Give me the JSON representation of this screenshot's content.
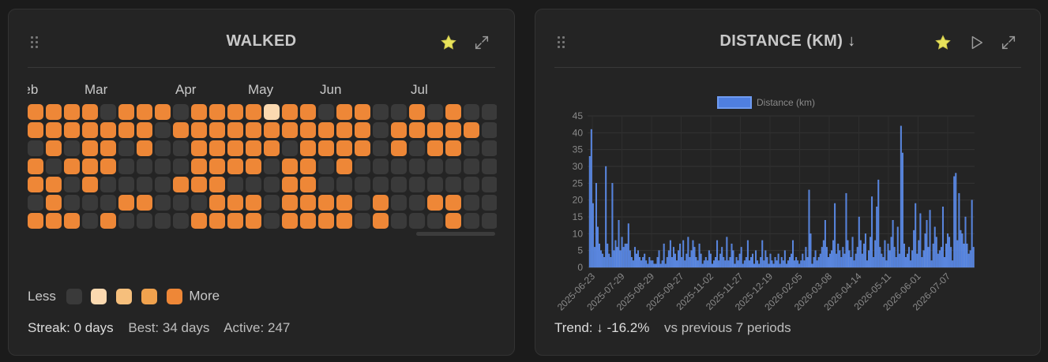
{
  "walked": {
    "title": "WALKED",
    "months": [
      "Feb",
      "Mar",
      "Apr",
      "May",
      "Jun",
      "Jul"
    ],
    "weeks": [
      [
        4,
        4,
        0,
        4,
        4,
        0,
        4
      ],
      [
        4,
        4,
        4,
        0,
        4,
        4,
        4
      ],
      [
        4,
        4,
        0,
        4,
        0,
        0,
        4
      ],
      [
        4,
        4,
        4,
        4,
        4,
        0,
        0
      ],
      [
        0,
        4,
        4,
        4,
        0,
        0,
        4
      ],
      [
        4,
        4,
        0,
        0,
        0,
        4,
        0
      ],
      [
        4,
        4,
        4,
        0,
        0,
        4,
        0
      ],
      [
        4,
        0,
        0,
        0,
        0,
        0,
        0
      ],
      [
        0,
        4,
        0,
        0,
        4,
        0,
        0
      ],
      [
        4,
        4,
        4,
        4,
        4,
        0,
        4
      ],
      [
        4,
        4,
        4,
        4,
        4,
        4,
        4
      ],
      [
        4,
        4,
        4,
        4,
        0,
        4,
        4
      ],
      [
        4,
        4,
        4,
        4,
        0,
        4,
        4
      ],
      [
        1,
        4,
        4,
        0,
        0,
        0,
        0
      ],
      [
        4,
        4,
        0,
        4,
        4,
        4,
        4
      ],
      [
        4,
        4,
        4,
        4,
        4,
        4,
        4
      ],
      [
        0,
        4,
        4,
        0,
        0,
        4,
        4
      ],
      [
        4,
        4,
        4,
        4,
        0,
        4,
        4
      ],
      [
        4,
        4,
        4,
        0,
        0,
        0,
        0
      ],
      [
        0,
        0,
        0,
        0,
        0,
        4,
        4
      ],
      [
        0,
        4,
        4,
        0,
        0,
        0,
        0
      ],
      [
        4,
        4,
        0,
        0,
        0,
        0,
        0
      ],
      [
        0,
        4,
        4,
        0,
        0,
        4,
        0
      ],
      [
        4,
        4,
        4,
        0,
        0,
        4,
        4
      ],
      [
        0,
        4,
        0,
        0,
        0,
        0,
        0
      ],
      [
        0,
        0,
        0,
        0,
        0,
        0,
        0
      ]
    ],
    "legend": {
      "less": "Less",
      "more": "More"
    },
    "levels": [
      "#3a3a3a",
      "#fbd9b0",
      "#f6bf7c",
      "#f0a24e",
      "#ee8737"
    ],
    "stats": {
      "streak": "Streak: 0 days",
      "best": "Best: 34 days",
      "active": "Active: 247"
    },
    "icons": {
      "drag": "drag-handle-icon",
      "favorite": "star-icon",
      "expand": "expand-icon"
    }
  },
  "distance": {
    "title": "DISTANCE (KM)  ↓",
    "trend": "Trend: ↓ -16.2%",
    "comparison": "vs previous 7 periods",
    "icons": {
      "drag": "drag-handle-icon",
      "favorite": "star-icon",
      "play": "play-icon",
      "expand": "expand-icon"
    }
  },
  "colors": {
    "star": "#e8e35a",
    "bar": "#4f7fe0",
    "bar_border": "#6f9bf0",
    "heat": "#ee8737"
  },
  "chart_data": {
    "type": "bar",
    "legend": [
      "Distance (km)"
    ],
    "ylim": [
      0,
      45
    ],
    "yticks": [
      0,
      5,
      10,
      15,
      20,
      25,
      30,
      35,
      40,
      45
    ],
    "xtick_labels": [
      "2025-06-23",
      "2025-07-29",
      "2025-08-29",
      "2025-09-27",
      "2025-11-02",
      "2025-11-27",
      "2025-12-19",
      "2026-02-05",
      "2026-03-08",
      "2026-04-14",
      "2026-05-11",
      "2026-06-01",
      "2026-07-07"
    ],
    "grid": true,
    "series": [
      {
        "name": "Distance (km)",
        "values": [
          33,
          41,
          19,
          6,
          25,
          12,
          7,
          5,
          4,
          3,
          30,
          7,
          4,
          3,
          25,
          5,
          8,
          6,
          14,
          5,
          9,
          6,
          7,
          7,
          13,
          5,
          3,
          2,
          6,
          4,
          5,
          3,
          2,
          3,
          4,
          2,
          1,
          3,
          2,
          2,
          1,
          1,
          3,
          5,
          1,
          2,
          7,
          1,
          3,
          5,
          8,
          3,
          6,
          4,
          2,
          5,
          7,
          3,
          8,
          2,
          4,
          9,
          3,
          5,
          8,
          6,
          3,
          2,
          7,
          4,
          1,
          2,
          3,
          2,
          5,
          4,
          1,
          2,
          3,
          8,
          2,
          4,
          6,
          3,
          2,
          9,
          2,
          3,
          7,
          5,
          1,
          3,
          2,
          4,
          6,
          1,
          2,
          3,
          8,
          2,
          3,
          4,
          1,
          5,
          2,
          1,
          3,
          8,
          2,
          5,
          3,
          1,
          4,
          2,
          1,
          3,
          2,
          4,
          1,
          3,
          2,
          5,
          1,
          2,
          3,
          4,
          8,
          2,
          3,
          2,
          1,
          2,
          4,
          2,
          6,
          3,
          23,
          10,
          1,
          3,
          5,
          2,
          3,
          4,
          6,
          8,
          14,
          6,
          3,
          4,
          5,
          8,
          19,
          4,
          7,
          5,
          3,
          6,
          4,
          22,
          8,
          5,
          3,
          9,
          2,
          4,
          6,
          15,
          8,
          4,
          7,
          10,
          2,
          5,
          9,
          21,
          3,
          8,
          18,
          26,
          6,
          4,
          3,
          8,
          2,
          7,
          5,
          9,
          14,
          6,
          3,
          12,
          4,
          42,
          34,
          7,
          3,
          4,
          6,
          2,
          5,
          11,
          19,
          4,
          8,
          16,
          3,
          5,
          10,
          14,
          6,
          17,
          2,
          7,
          12,
          9,
          4,
          5,
          6,
          18,
          3,
          7,
          10,
          9,
          6,
          2,
          27,
          28,
          8,
          22,
          11,
          10,
          7,
          15,
          7,
          4,
          5,
          20,
          6
        ]
      }
    ]
  }
}
